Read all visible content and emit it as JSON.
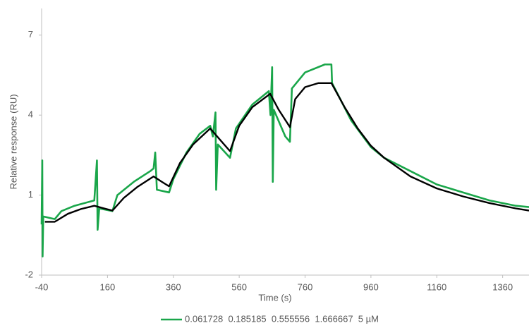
{
  "chart_data": {
    "type": "line",
    "x_label": "Time (s)",
    "y_label": "Relative response (RU)",
    "xlim": [
      -40,
      1440
    ],
    "xticks": [
      -40,
      160,
      360,
      560,
      760,
      960,
      1160,
      1360
    ],
    "ylim": [
      -2,
      8
    ],
    "yticks": [
      -2,
      1,
      4,
      7
    ],
    "legend": "bottom",
    "series": [
      {
        "name": "0.061728  0.185185  0.555556  1.666667  5 µM",
        "color": "#1aa64a",
        "x": [
          -40,
          -38,
          -37,
          -35,
          0,
          20,
          60,
          120,
          128,
          130,
          135,
          175,
          190,
          240,
          290,
          300,
          305,
          310,
          347,
          360,
          400,
          440,
          472,
          480,
          488,
          490,
          495,
          532,
          550,
          600,
          650,
          655,
          660,
          662,
          665,
          700,
          714,
          720,
          760,
          820,
          840,
          842,
          900,
          960,
          1000,
          1080,
          1160,
          1240,
          1320,
          1400,
          1440
        ],
        "values": [
          -0.1,
          2.3,
          -1.3,
          0.2,
          0.1,
          0.4,
          0.6,
          0.8,
          2.3,
          -0.3,
          0.5,
          0.4,
          1.0,
          1.5,
          1.9,
          2.0,
          2.6,
          1.2,
          1.1,
          1.6,
          2.6,
          3.3,
          3.6,
          3.2,
          4.1,
          1.2,
          2.9,
          2.4,
          3.5,
          4.4,
          4.9,
          4.0,
          5.8,
          1.5,
          4.2,
          3.2,
          3.0,
          5.0,
          5.6,
          5.9,
          5.9,
          5.2,
          3.8,
          2.8,
          2.4,
          1.9,
          1.4,
          1.1,
          0.8,
          0.6,
          0.55
        ]
      },
      {
        "color": "#000000",
        "x": [
          -30,
          0,
          40,
          80,
          120,
          150,
          175,
          210,
          250,
          300,
          325,
          347,
          380,
          420,
          472,
          500,
          532,
          560,
          600,
          654,
          680,
          714,
          730,
          760,
          800,
          840,
          880,
          920,
          960,
          1000,
          1080,
          1160,
          1240,
          1320,
          1400,
          1440
        ],
        "values": [
          0,
          0,
          0.3,
          0.48,
          0.6,
          0.5,
          0.42,
          0.9,
          1.3,
          1.7,
          1.5,
          1.33,
          2.2,
          2.9,
          3.5,
          3.1,
          2.65,
          3.6,
          4.3,
          4.8,
          4.2,
          3.55,
          4.6,
          5.05,
          5.2,
          5.2,
          4.3,
          3.5,
          2.85,
          2.4,
          1.7,
          1.25,
          0.95,
          0.7,
          0.5,
          0.42
        ]
      }
    ]
  }
}
